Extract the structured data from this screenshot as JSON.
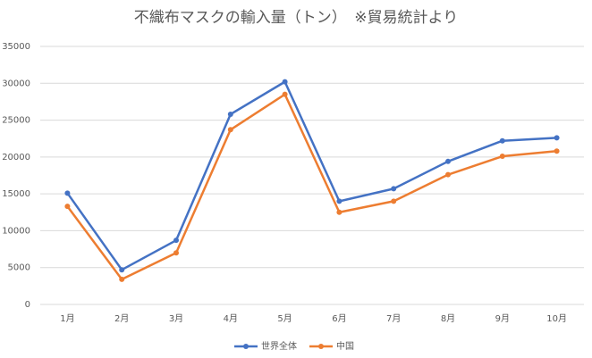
{
  "chart_data": {
    "type": "line",
    "title": "不織布マスクの輸入量（トン）　※貿易統計より",
    "categories": [
      "1月",
      "2月",
      "3月",
      "4月",
      "5月",
      "6月",
      "7月",
      "8月",
      "9月",
      "10月"
    ],
    "series": [
      {
        "name": "世界全体",
        "color": "#4472c4",
        "values": [
          15100,
          4700,
          8700,
          25800,
          30200,
          14000,
          15700,
          19400,
          22200,
          22600
        ]
      },
      {
        "name": "中国",
        "color": "#ed7d31",
        "values": [
          13300,
          3400,
          7000,
          23700,
          28500,
          12500,
          14000,
          17600,
          20100,
          20800
        ]
      }
    ],
    "ylim": [
      0,
      35000
    ],
    "yticks": [
      0,
      5000,
      10000,
      15000,
      20000,
      25000,
      30000,
      35000
    ],
    "grid": true,
    "legend": "bottom"
  }
}
